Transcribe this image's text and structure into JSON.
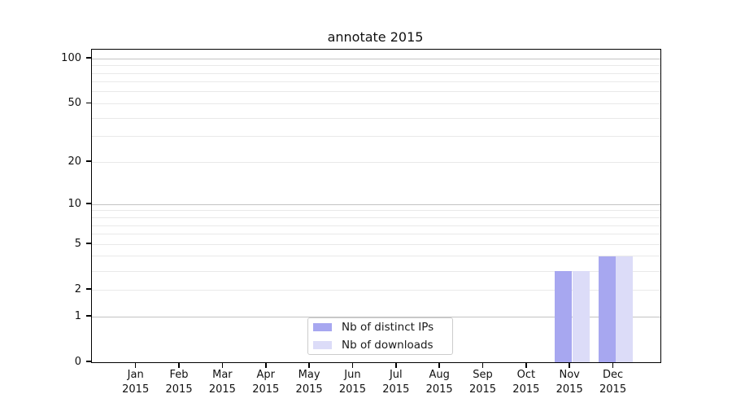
{
  "chart_data": {
    "type": "bar",
    "title": "annotate 2015",
    "categories": [
      "Jan",
      "Feb",
      "Mar",
      "Apr",
      "May",
      "Jun",
      "Jul",
      "Aug",
      "Sep",
      "Oct",
      "Nov",
      "Dec"
    ],
    "x_year": "2015",
    "series": [
      {
        "name": "Nb of distinct IPs",
        "color": "#a7a7f0",
        "values": [
          0,
          0,
          0,
          0,
          0,
          0,
          0,
          0,
          0,
          0,
          3,
          4
        ]
      },
      {
        "name": "Nb of downloads",
        "color": "#dcdcf8",
        "values": [
          0,
          0,
          0,
          0,
          0,
          0,
          0,
          0,
          0,
          0,
          3,
          4
        ]
      }
    ],
    "xlabel": "",
    "ylabel": "",
    "yscale": "log1p",
    "yticks": [
      0,
      1,
      2,
      5,
      10,
      20,
      50,
      100
    ],
    "ylim": [
      0,
      115
    ],
    "grid": true,
    "gridlines_minor": [
      2,
      3,
      4,
      5,
      6,
      7,
      8,
      9,
      20,
      30,
      40,
      50,
      60,
      70,
      80,
      90
    ],
    "gridlines_decade": [
      1,
      10,
      100
    ],
    "legend": {
      "position": "lower center"
    },
    "colors": {
      "axis": "#000000",
      "grid_minor": "#e9e9e9",
      "grid_decade": "#c3c3c3",
      "legend_border": "#cccccc",
      "text": "#111111"
    }
  }
}
